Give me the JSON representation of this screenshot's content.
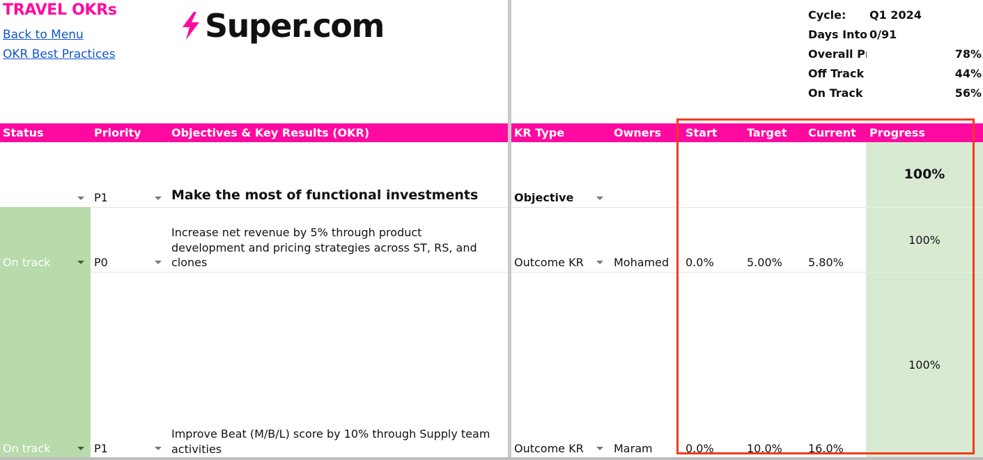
{
  "header": {
    "title": "TRAVEL OKRs",
    "links": [
      "Back to Menu",
      "OKR Best Practices"
    ],
    "logo_text": "Super.com",
    "brand_color": "#ff0aa0"
  },
  "summary": [
    {
      "label": "Cycle:",
      "value": "Q1 2024"
    },
    {
      "label": "Days Into",
      "value": "0/91"
    },
    {
      "label": "Overall Progress",
      "value": "78%"
    },
    {
      "label": "Off Track",
      "value": "44%"
    },
    {
      "label": "On Track",
      "value": "56%"
    }
  ],
  "columns": [
    "Status",
    "Priority",
    "Objectives & Key Results (OKR)",
    "KR Type",
    "Owners",
    "Start",
    "Target",
    "Current",
    "Progress"
  ],
  "rows": [
    {
      "status": "",
      "priority": "P1",
      "okr": "Make the most of functional investments",
      "kr_type": "Objective",
      "owner": "",
      "start": "",
      "target": "",
      "current": "",
      "progress": "100%"
    },
    {
      "status": "On track",
      "priority": "P0",
      "okr": "Increase net revenue by 5% through product development and pricing strategies across ST, RS, and clones",
      "kr_type": "Outcome KR",
      "owner": "Mohamed",
      "start": "0.0%",
      "target": "5.00%",
      "current": "5.80%",
      "progress": "100%"
    },
    {
      "status": "On track",
      "priority": "P1",
      "okr": "Improve Beat (M/B/L) score by 10% through Supply team activities",
      "kr_type": "Outcome KR",
      "owner": "Maram",
      "start": "0.0%",
      "target": "10.0%",
      "current": "16.0%",
      "progress": "100%"
    }
  ],
  "colors": {
    "status_green": "#b7dbab",
    "progress_green": "#d9ead3",
    "highlight_border": "#f23a1c",
    "link": "#1155cc"
  }
}
